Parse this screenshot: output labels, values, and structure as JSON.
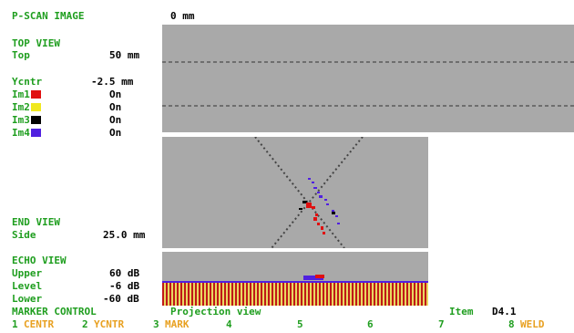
{
  "header": {
    "title": "P-SCAN IMAGE",
    "position": "0 mm"
  },
  "top_view": {
    "title": "TOP VIEW",
    "rows": [
      {
        "label": "Top",
        "value": "50 mm"
      },
      {
        "label": "Ycntr",
        "value": "-2.5 mm"
      }
    ]
  },
  "images": [
    {
      "label": "Im1",
      "state": "On",
      "color": "#e01010"
    },
    {
      "label": "Im2",
      "state": "On",
      "color": "#f0e820"
    },
    {
      "label": "Im3",
      "state": "On",
      "color": "#000000"
    },
    {
      "label": "Im4",
      "state": "On",
      "color": "#5020e0"
    }
  ],
  "end_view": {
    "title": "END VIEW",
    "rows": [
      {
        "label": "Side",
        "value": "25.0 mm"
      }
    ]
  },
  "echo_view": {
    "title": "ECHO VIEW",
    "rows": [
      {
        "label": "Upper",
        "value": "60 dB"
      },
      {
        "label": "Level",
        "value": "-6 dB"
      },
      {
        "label": "Lower",
        "value": "-60 dB"
      }
    ]
  },
  "status": {
    "mode": "MARKER CONTROL",
    "view": "Projection view",
    "item_label": "Item",
    "item": "D4.1"
  },
  "keys": [
    {
      "number": "1",
      "label": "CENTR"
    },
    {
      "number": "2",
      "label": "YCNTR"
    },
    {
      "number": "3",
      "label": "MARK"
    },
    {
      "number": "4"
    },
    {
      "number": "5"
    },
    {
      "number": "6"
    },
    {
      "number": "7"
    },
    {
      "number": "8",
      "label": "WELD"
    }
  ]
}
